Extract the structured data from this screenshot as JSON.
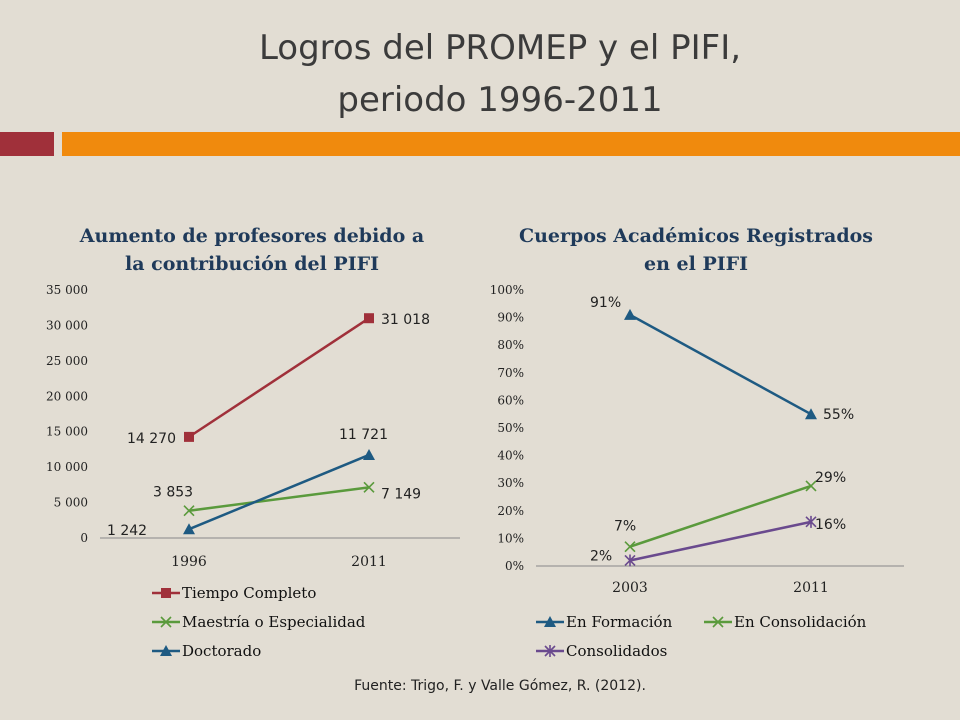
{
  "header": {
    "title_line1": "Logros del PROMEP y el PIFI,",
    "title_line2": "periodo 1996-2011"
  },
  "colors": {
    "accent_red": "#a0303a",
    "accent_orange": "#f08a0d",
    "background": "#e2ddd3"
  },
  "footer": {
    "source": "Fuente: Trigo, F. y Valle Gómez, R. (2012)."
  },
  "chart_data": [
    {
      "type": "line",
      "title": "Aumento de profesores debido a la contribución del PIFI",
      "title_lines": [
        "Aumento de profesores debido a",
        "la contribución del PIFI"
      ],
      "categories": [
        "1996",
        "2011"
      ],
      "ylim": [
        0,
        35000
      ],
      "yticks": [
        0,
        5000,
        10000,
        15000,
        20000,
        25000,
        30000,
        35000
      ],
      "ytick_labels": [
        "0",
        "5 000",
        "10 000",
        "15 000",
        "20 000",
        "25 000",
        "30 000",
        "35 000"
      ],
      "grid": false,
      "legend_position": "bottom",
      "series": [
        {
          "name": "Tiempo Completo",
          "values": [
            14270,
            31018
          ],
          "labels": [
            "14 270",
            "31 018"
          ],
          "color": "#a0303a",
          "marker": "square"
        },
        {
          "name": "Maestría o Especialidad",
          "values": [
            3853,
            7149
          ],
          "labels": [
            "3 853",
            "7 149"
          ],
          "color": "#5a9a3c",
          "marker": "x"
        },
        {
          "name": "Doctorado",
          "values": [
            1242,
            11721
          ],
          "labels": [
            "1 242",
            "11 721"
          ],
          "color": "#1e5a82",
          "marker": "triangle"
        }
      ]
    },
    {
      "type": "line",
      "title": "Cuerpos Académicos Registrados en el PIFI",
      "title_lines": [
        "Cuerpos Académicos Registrados",
        "en el PIFI"
      ],
      "categories": [
        "2003",
        "2011"
      ],
      "ylim": [
        0,
        100
      ],
      "yticks": [
        0,
        10,
        20,
        30,
        40,
        50,
        60,
        70,
        80,
        90,
        100
      ],
      "ytick_labels": [
        "0%",
        "10%",
        "20%",
        "30%",
        "40%",
        "50%",
        "60%",
        "70%",
        "80%",
        "90%",
        "100%"
      ],
      "grid": false,
      "legend_position": "bottom",
      "series": [
        {
          "name": "En Formación",
          "values": [
            91,
            55
          ],
          "labels": [
            "91%",
            "55%"
          ],
          "color": "#1e5a82",
          "marker": "triangle"
        },
        {
          "name": "En Consolidación",
          "values": [
            7,
            29
          ],
          "labels": [
            "7%",
            "29%"
          ],
          "color": "#5a9a3c",
          "marker": "x"
        },
        {
          "name": "Consolidados",
          "values": [
            2,
            16
          ],
          "labels": [
            "2%",
            "16%"
          ],
          "color": "#6a4a8e",
          "marker": "star"
        }
      ]
    }
  ]
}
